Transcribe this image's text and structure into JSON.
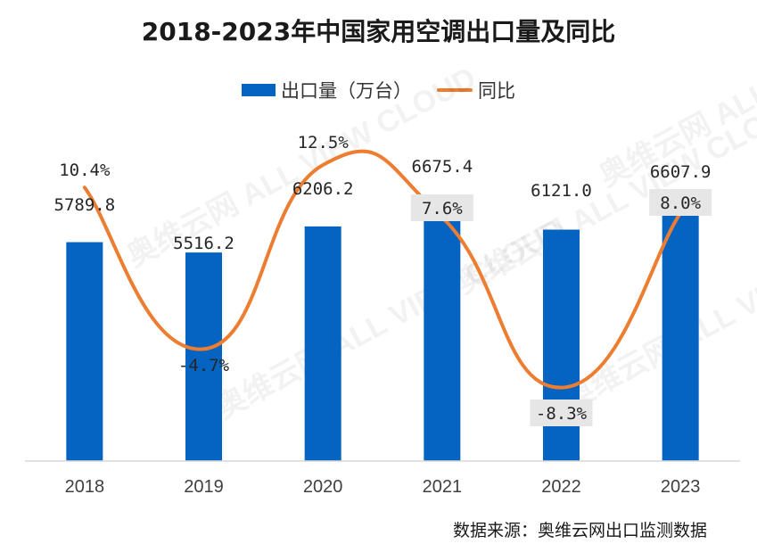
{
  "chart_data": {
    "type": "bar",
    "title": "2018-2023年中国家用空调出口量及同比",
    "categories": [
      "2018",
      "2019",
      "2020",
      "2021",
      "2022",
      "2023"
    ],
    "series": [
      {
        "name": "出口量（万台）",
        "type": "bar",
        "color": "#0563C1",
        "values": [
          5789.8,
          5516.2,
          6206.2,
          6675.4,
          6121.0,
          6607.9
        ],
        "labels": [
          "5789.8",
          "5516.2",
          "6206.2",
          "6675.4",
          "6121.0",
          "6607.9"
        ]
      },
      {
        "name": "同比",
        "type": "line",
        "smooth": true,
        "color": "#ED7D31",
        "values": [
          10.4,
          -4.7,
          12.5,
          7.6,
          -8.3,
          8.0
        ],
        "labels": [
          "10.4%",
          "-4.7%",
          "12.5%",
          "7.6%",
          "-8.3%",
          "8.0%"
        ]
      }
    ],
    "legend_position": "top-center",
    "grid": false
  },
  "source": "数据来源：奥维云网出口监测数据",
  "watermark": "奥维云网 ALL VIEW CLOUD"
}
